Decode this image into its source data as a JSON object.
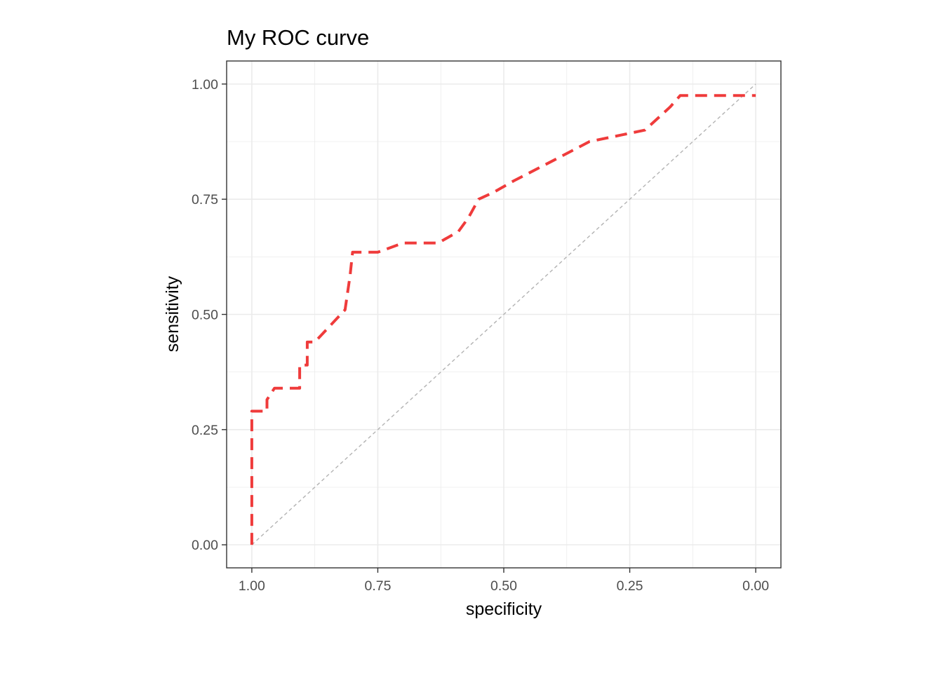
{
  "chart_data": {
    "type": "line",
    "title": "My ROC curve",
    "xlabel": "specificity",
    "ylabel": "sensitivity",
    "x_reversed": true,
    "xlim": [
      -0.05,
      1.05
    ],
    "ylim": [
      -0.05,
      1.05
    ],
    "x_ticks": [
      1.0,
      0.75,
      0.5,
      0.25,
      0.0
    ],
    "x_tick_labels": [
      "1.00",
      "0.75",
      "0.50",
      "0.25",
      "0.00"
    ],
    "y_ticks": [
      0.0,
      0.25,
      0.5,
      0.75,
      1.0
    ],
    "y_tick_labels": [
      "0.00",
      "0.25",
      "0.50",
      "0.75",
      "1.00"
    ],
    "grid": true,
    "legend": "none",
    "series": [
      {
        "line_style": "dashed",
        "color": "#ef3b3b",
        "x": [
          1.0,
          1.0,
          0.97,
          0.97,
          0.955,
          0.905,
          0.905,
          0.89,
          0.89,
          0.875,
          0.815,
          0.815,
          0.805,
          0.805,
          0.8,
          0.75,
          0.7,
          0.63,
          0.59,
          0.57,
          0.55,
          0.52,
          0.48,
          0.4,
          0.33,
          0.22,
          0.17,
          0.15,
          0.0
        ],
        "y": [
          0.0,
          0.29,
          0.29,
          0.315,
          0.34,
          0.34,
          0.39,
          0.39,
          0.44,
          0.44,
          0.51,
          0.51,
          0.585,
          0.585,
          0.635,
          0.635,
          0.655,
          0.655,
          0.68,
          0.71,
          0.75,
          0.765,
          0.79,
          0.835,
          0.875,
          0.9,
          0.95,
          0.975,
          0.975
        ]
      }
    ],
    "reference_line": {
      "x": [
        1.0,
        0.0
      ],
      "y": [
        0.0,
        1.0
      ],
      "line_style": "dashed",
      "color": "#b3b3b3"
    }
  }
}
